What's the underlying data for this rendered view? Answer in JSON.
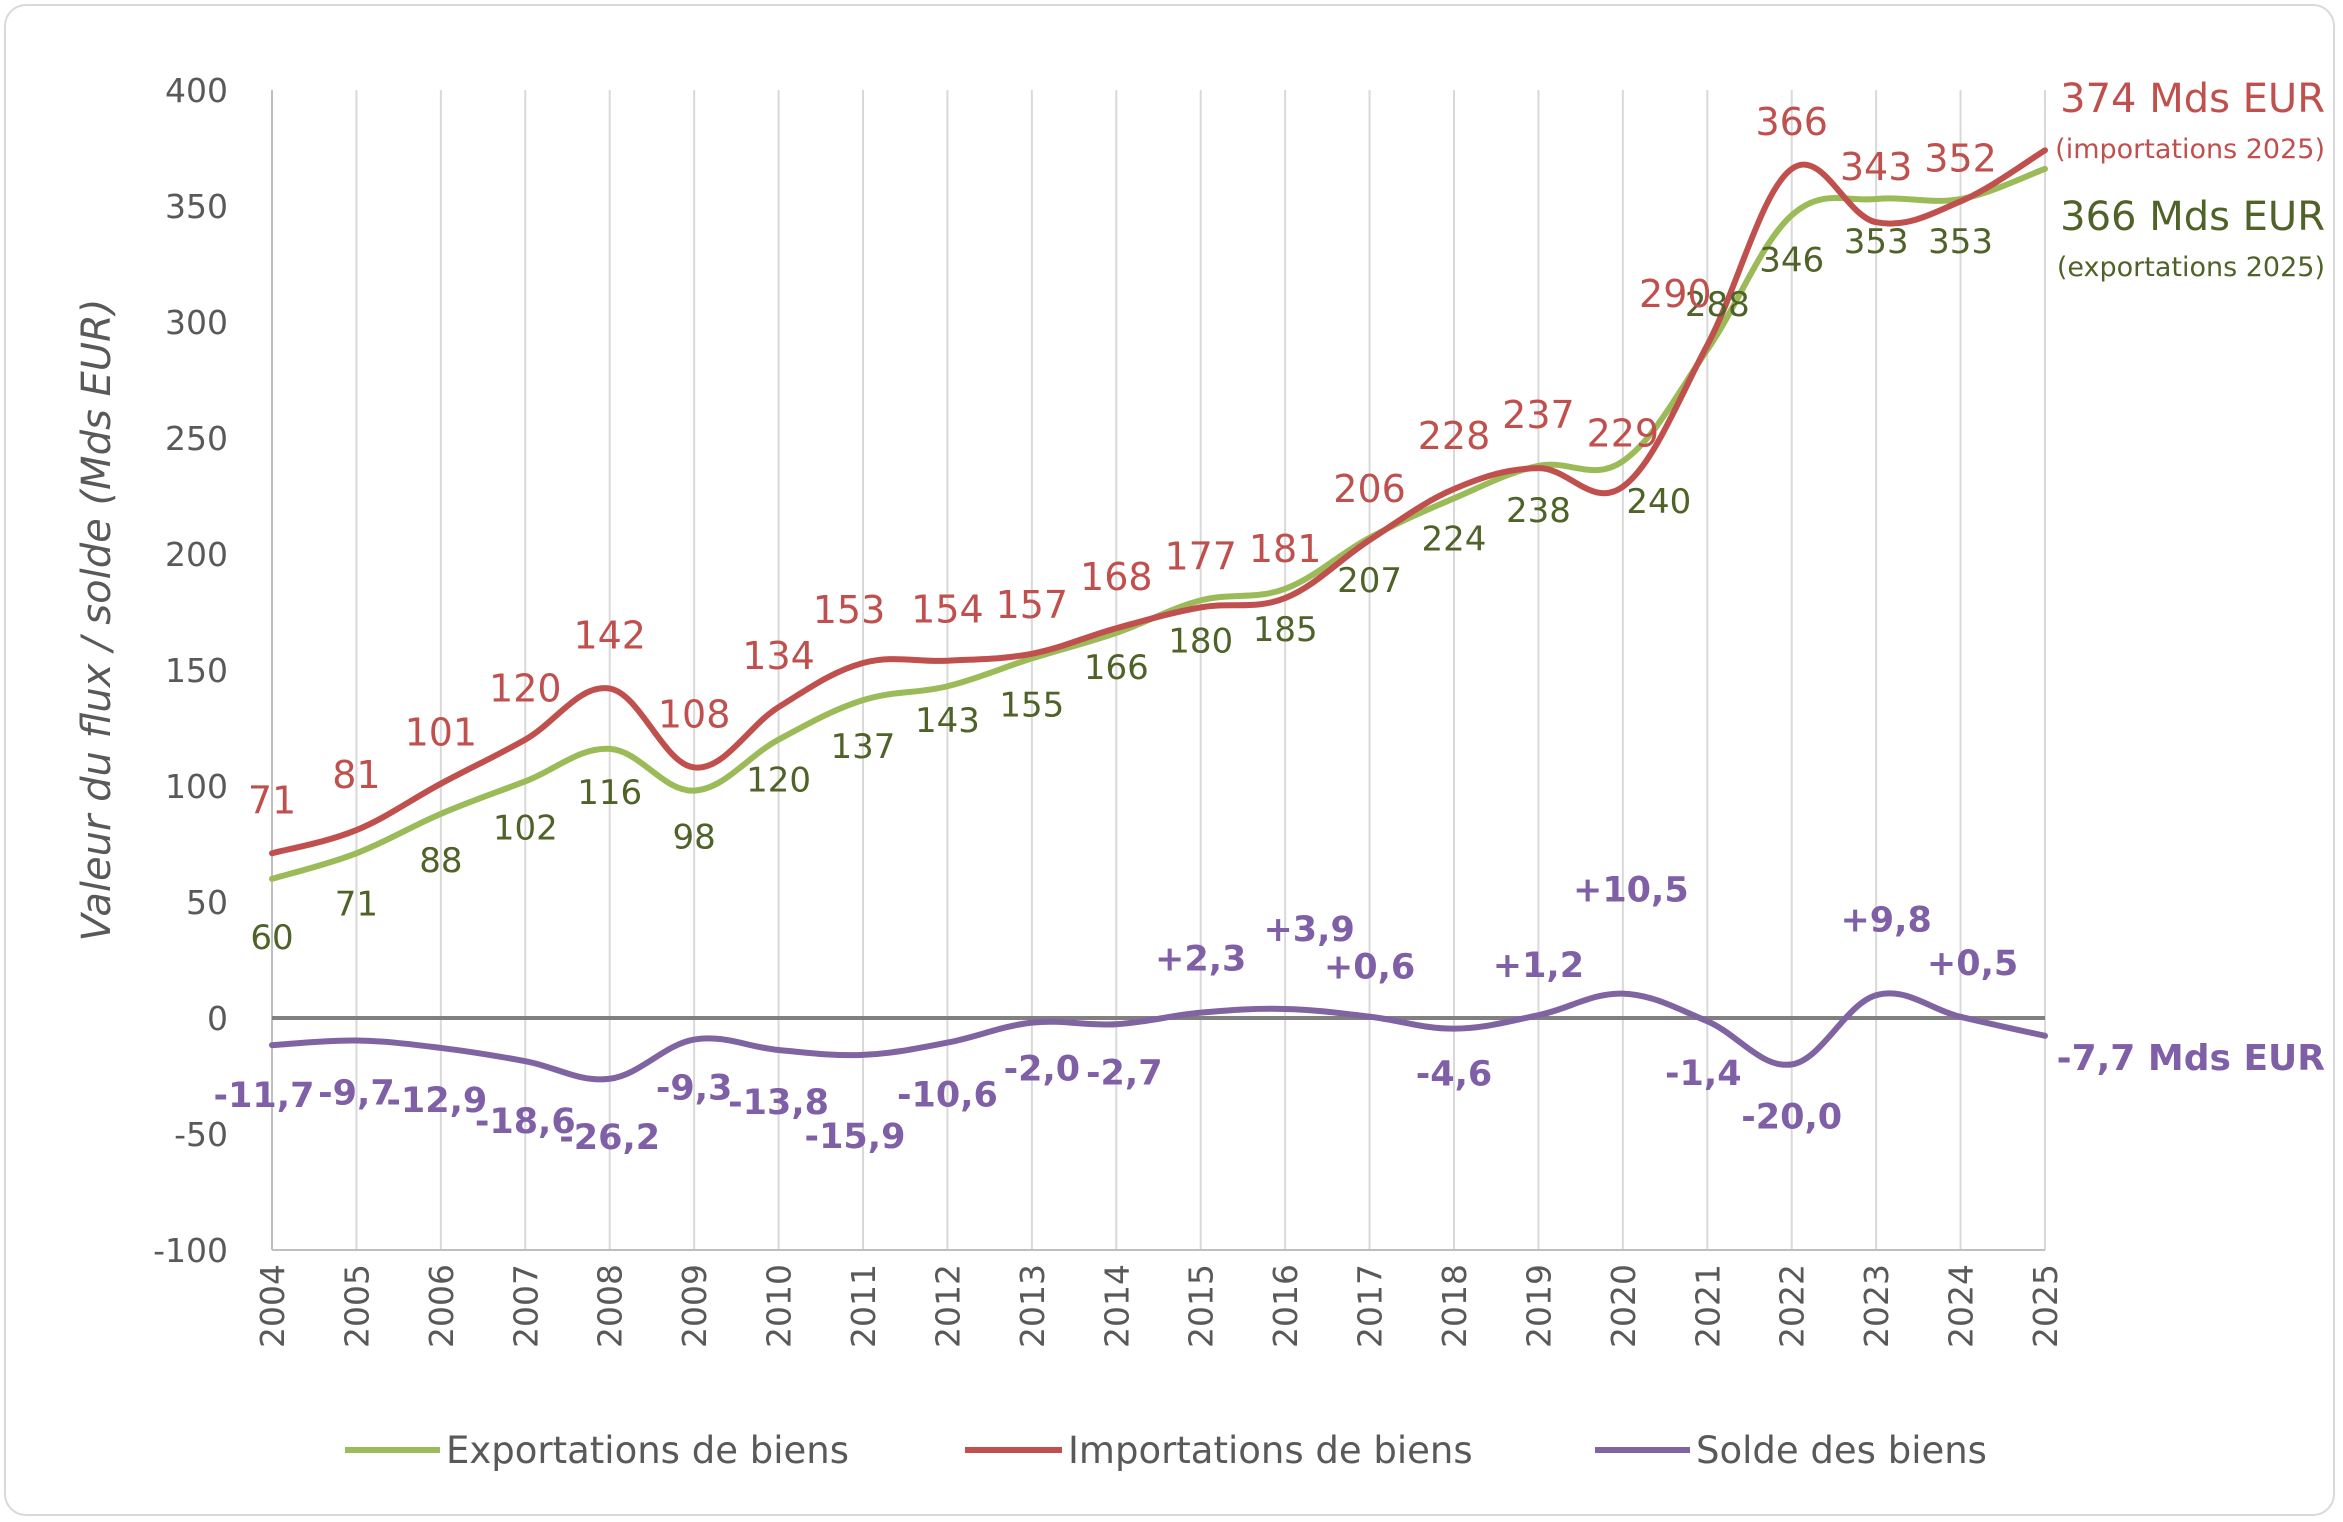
{
  "chart_data": {
    "type": "line",
    "categories": [
      "2004",
      "2005",
      "2006",
      "2007",
      "2008",
      "2009",
      "2010",
      "2011",
      "2012",
      "2013",
      "2014",
      "2015",
      "2016",
      "2017",
      "2018",
      "2019",
      "2020",
      "2021",
      "2022",
      "2023",
      "2024",
      "2025"
    ],
    "ylabel": "Valeur du flux / solde (Mds EUR)",
    "ylim": [
      -100,
      400
    ],
    "yticks": [
      "400",
      "350",
      "300",
      "250",
      "200",
      "150",
      "100",
      "50",
      "0",
      "-50",
      "-100"
    ],
    "ytick_values": [
      400,
      350,
      300,
      250,
      200,
      150,
      100,
      50,
      0,
      -50,
      -100
    ],
    "grid": "vertical",
    "legend_position": "bottom",
    "series": [
      {
        "name": "Exportations de biens",
        "color": "#9bbb59",
        "label_color": "#4f6228",
        "values": [
          60,
          71,
          88,
          102,
          116,
          98,
          120,
          137,
          143,
          155,
          166,
          180,
          185,
          207,
          224,
          238,
          240,
          288,
          346,
          353,
          353,
          366
        ],
        "labels": [
          "60",
          "71",
          "88",
          "102",
          "116",
          "98",
          "120",
          "137",
          "143",
          "155",
          "166",
          "180",
          "185",
          "207",
          "224",
          "238",
          "240",
          "288",
          "346",
          "353",
          "353",
          ""
        ]
      },
      {
        "name": "Importations de biens",
        "color": "#c0504d",
        "label_color": "#c0504d",
        "values": [
          71,
          81,
          101,
          120,
          142,
          108,
          134,
          153,
          154,
          157,
          168,
          177,
          181,
          206,
          228,
          237,
          229,
          290,
          366,
          343,
          352,
          374
        ],
        "labels": [
          "71",
          "81",
          "101",
          "120",
          "142",
          "108",
          "134",
          "153",
          "154",
          "157",
          "168",
          "177",
          "181",
          "206",
          "228",
          "237",
          "229",
          "290",
          "366",
          "343",
          "352",
          ""
        ]
      },
      {
        "name": "Solde des biens",
        "color": "#8064a2",
        "label_color": "#7f5fa6",
        "values": [
          -11.7,
          -9.7,
          -12.9,
          -18.6,
          -26.2,
          -9.3,
          -13.8,
          -15.9,
          -10.6,
          -2.0,
          -2.7,
          2.3,
          3.9,
          0.6,
          -4.6,
          1.2,
          10.5,
          -1.4,
          -20.0,
          9.8,
          0.5,
          -7.7
        ],
        "labels": [
          "-11,7",
          "-9,7",
          "-12,9",
          "-18,6",
          "-26,2",
          "-9,3",
          "-13,8",
          "-15,9",
          "-10,6",
          "-2,0",
          "-2,7",
          "+2,3",
          "+3,9",
          "+0,6",
          "-4,6",
          "+1,2",
          "+10,5",
          "-1,4",
          "-20,0",
          "+9,8",
          "+0,5",
          ""
        ]
      }
    ],
    "annotations": {
      "imports_value": "374 Mds EUR",
      "imports_note": "(importations 2025)",
      "exports_value": "366 Mds EUR",
      "exports_note": "(exportations 2025)",
      "balance_value": "-7,7 Mds EUR"
    }
  }
}
